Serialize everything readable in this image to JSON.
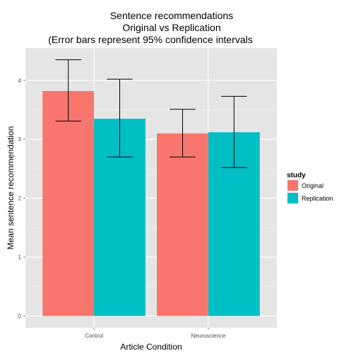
{
  "chart_data": {
    "type": "bar",
    "title_lines": [
      "Sentence recommendations",
      "Original vs Replication",
      "(Error bars represent 95% confidence intervals"
    ],
    "xlabel": "Article Condition",
    "ylabel": "Mean sentence recommendation",
    "categories": [
      "Control",
      "Neuroscience"
    ],
    "ylim": [
      -0.2,
      4.55
    ],
    "yticks": [
      0,
      1,
      2,
      3,
      4
    ],
    "ytick_labels": [
      "0",
      "1",
      "2",
      "3",
      "4"
    ],
    "grid": true,
    "legend": {
      "title": "study",
      "position": "right"
    },
    "series": [
      {
        "name": "Original",
        "color": "#F8766D",
        "values": [
          3.82,
          3.1
        ],
        "ci_low": [
          3.31,
          2.7
        ],
        "ci_high": [
          4.35,
          3.51
        ]
      },
      {
        "name": "Replication",
        "color": "#00BFC4",
        "values": [
          3.35,
          3.12
        ],
        "ci_low": [
          2.7,
          2.52
        ],
        "ci_high": [
          4.02,
          3.73
        ]
      }
    ]
  }
}
